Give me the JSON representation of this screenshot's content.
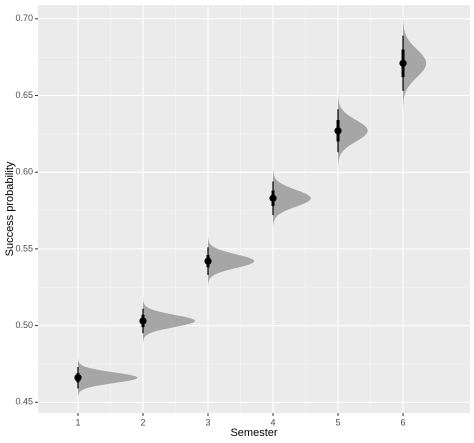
{
  "chart_data": {
    "type": "halfeye",
    "x_label": "Semester",
    "y_label": "Success probability",
    "x": [
      1,
      2,
      3,
      4,
      5,
      6
    ],
    "medians": [
      0.466,
      0.503,
      0.542,
      0.583,
      0.627,
      0.671
    ],
    "sd": [
      0.0035,
      0.004,
      0.0045,
      0.0055,
      0.007,
      0.009
    ],
    "lower_95": [
      0.459,
      0.495,
      0.533,
      0.572,
      0.613,
      0.653
    ],
    "upper_95": [
      0.473,
      0.511,
      0.551,
      0.594,
      0.641,
      0.689
    ],
    "lower_66": [
      0.463,
      0.499,
      0.538,
      0.578,
      0.62,
      0.662
    ],
    "upper_66": [
      0.469,
      0.507,
      0.546,
      0.588,
      0.634,
      0.68
    ],
    "slab_color": "#a6a6a6",
    "point_color": "#000000",
    "xlim": [
      0.385,
      7.03
    ],
    "xticks": [
      1,
      2,
      3,
      4,
      5,
      6
    ],
    "ylim": [
      0.443,
      0.709
    ],
    "yticks": [
      {
        "value": 0.45,
        "label": "0.45"
      },
      {
        "value": 0.5,
        "label": "0.50"
      },
      {
        "value": 0.55,
        "label": "0.55"
      },
      {
        "value": 0.6,
        "label": "0.60"
      },
      {
        "value": 0.65,
        "label": "0.65"
      },
      {
        "value": 0.7,
        "label": "0.70"
      }
    ],
    "grid": true
  }
}
